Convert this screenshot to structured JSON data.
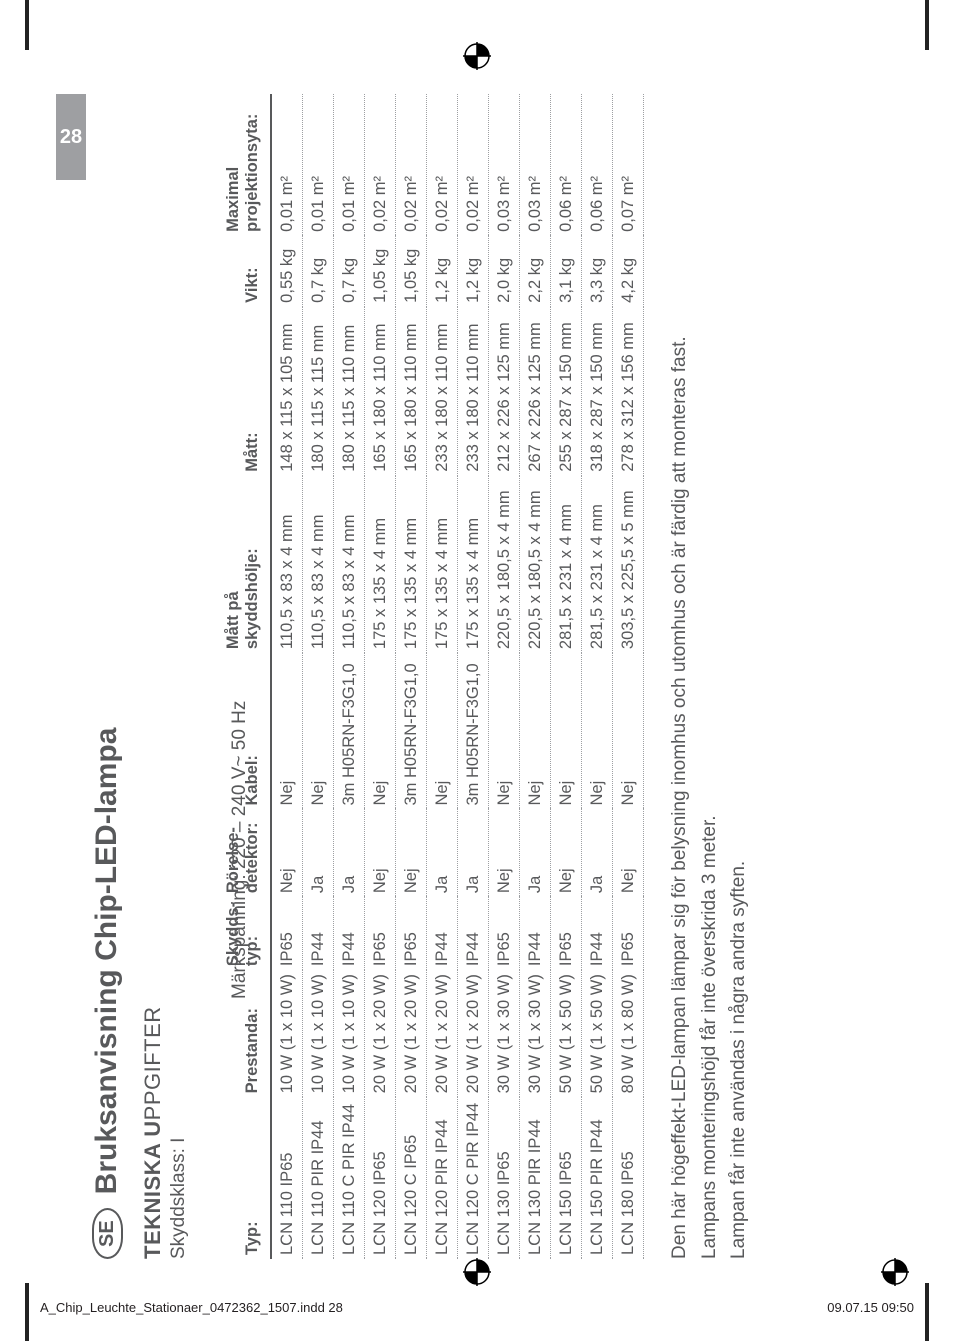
{
  "page_tab": "28",
  "country_code": "SE",
  "main_title": "Bruksanvisning Chip-LED-lampa",
  "section_title_strong": "TEKNISKA U",
  "section_title_light": "PPGIFTER",
  "skyddsklass_label": "Skyddsklass: I",
  "markspanning": "Märkspänning: 220 – 240 V~ 50 Hz",
  "headers": {
    "typ": "Typ:",
    "prestanda": "Prestanda:",
    "skydds": "Skydds-",
    "skydds2": "typ:",
    "rorelse": "Rörelse-",
    "rorelse2": "detektor:",
    "kabel": "Kabel:",
    "matt_pa": "Mått på",
    "matt_pa2": "skyddshölje:",
    "matt": "Mått:",
    "vikt": "Vikt:",
    "maximal": "Maximal",
    "maximal2": "projektionsyta:"
  },
  "rows": [
    {
      "typ": "LCN 110 IP65",
      "pres": "10 W (1 x 10 W)",
      "sky": "IP65",
      "ror": "Nej",
      "kab": "Nej",
      "mpa": "110,5 x 83 x 4 mm",
      "matt": "148 x 115 x 105 mm",
      "vikt": "0,55 kg",
      "max": "0,01 m²"
    },
    {
      "typ": "LCN 110 PIR IP44",
      "pres": "10 W (1 x 10 W)",
      "sky": "IP44",
      "ror": "Ja",
      "kab": "Nej",
      "mpa": "110,5 x 83 x 4 mm",
      "matt": "180 x 115 x 115 mm",
      "vikt": "0,7 kg",
      "max": "0,01 m²"
    },
    {
      "typ": "LCN 110 C PIR IP44",
      "pres": "10 W (1 x 10 W)",
      "sky": "IP44",
      "ror": "Ja",
      "kab": "3m H05RN-F3G1,0",
      "mpa": "110,5 x 83 x 4 mm",
      "matt": "180 x 115 x 110 mm",
      "vikt": "0,7 kg",
      "max": "0,01 m²"
    },
    {
      "typ": "LCN 120 IP65",
      "pres": "20 W (1 x 20 W)",
      "sky": "IP65",
      "ror": "Nej",
      "kab": "Nej",
      "mpa": "175 x 135 x 4 mm",
      "matt": "165 x 180 x 110 mm",
      "vikt": "1,05 kg",
      "max": "0,02 m²"
    },
    {
      "typ": "LCN 120 C IP65",
      "pres": "20 W (1 x 20 W)",
      "sky": "IP65",
      "ror": "Nej",
      "kab": "3m H05RN-F3G1,0",
      "mpa": "175 x 135 x 4 mm",
      "matt": "165 x 180 x 110 mm",
      "vikt": "1,05 kg",
      "max": "0,02 m²"
    },
    {
      "typ": "LCN 120 PIR IP44",
      "pres": "20 W (1 x 20 W)",
      "sky": "IP44",
      "ror": "Ja",
      "kab": "Nej",
      "mpa": "175 x 135 x 4 mm",
      "matt": "233 x 180 x 110 mm",
      "vikt": "1,2 kg",
      "max": "0,02 m²"
    },
    {
      "typ": "LCN 120 C PIR IP44",
      "pres": "20 W (1 x 20 W)",
      "sky": "IP44",
      "ror": "Ja",
      "kab": "3m H05RN-F3G1,0",
      "mpa": "175 x 135 x 4 mm",
      "matt": "233 x 180 x 110 mm",
      "vikt": "1,2 kg",
      "max": "0,02 m²"
    },
    {
      "typ": "LCN 130 IP65",
      "pres": "30 W (1 x 30 W)",
      "sky": "IP65",
      "ror": "Nej",
      "kab": "Nej",
      "mpa": "220,5 x 180,5 x 4 mm",
      "matt": "212 x 226 x 125 mm",
      "vikt": "2,0 kg",
      "max": "0,03 m²"
    },
    {
      "typ": "LCN 130 PIR IP44",
      "pres": "30 W (1 x 30 W)",
      "sky": "IP44",
      "ror": "Ja",
      "kab": "Nej",
      "mpa": "220,5 x 180,5 x 4 mm",
      "matt": "267 x 226 x 125 mm",
      "vikt": "2,2 kg",
      "max": "0,03 m²"
    },
    {
      "typ": "LCN 150 IP65",
      "pres": "50 W (1 x 50 W)",
      "sky": "IP65",
      "ror": "Nej",
      "kab": "Nej",
      "mpa": "281,5 x 231 x 4 mm",
      "matt": "255 x 287 x 150 mm",
      "vikt": "3,1 kg",
      "max": "0,06 m²"
    },
    {
      "typ": "LCN 150 PIR IP44",
      "pres": "50 W (1 x 50 W)",
      "sky": "IP44",
      "ror": "Ja",
      "kab": "Nej",
      "mpa": "281,5 x 231 x 4 mm",
      "matt": "318 x 287 x 150 mm",
      "vikt": "3,3 kg",
      "max": "0,06 m²"
    },
    {
      "typ": "LCN 180 IP65",
      "pres": "80 W (1 x 80 W)",
      "sky": "IP65",
      "ror": "Nej",
      "kab": "Nej",
      "mpa": "303,5 x 225,5 x 5 mm",
      "matt": "278 x 312 x 156 mm",
      "vikt": "4,2 kg",
      "max": "0,07 m²"
    }
  ],
  "body1": "Den här högeffekt-LED-lampan lämpar sig för belysning inomhus och utomhus och är färdig att monteras fast.",
  "body2": "Lampans monteringshöjd får inte överskrida 3 meter.",
  "body3": "Lampan får inte användas i några andra syften.",
  "footer_left": "A_Chip_Leuchte_Stationaer_0472362_1507.indd   28",
  "footer_right": "09.07.15   09:50"
}
